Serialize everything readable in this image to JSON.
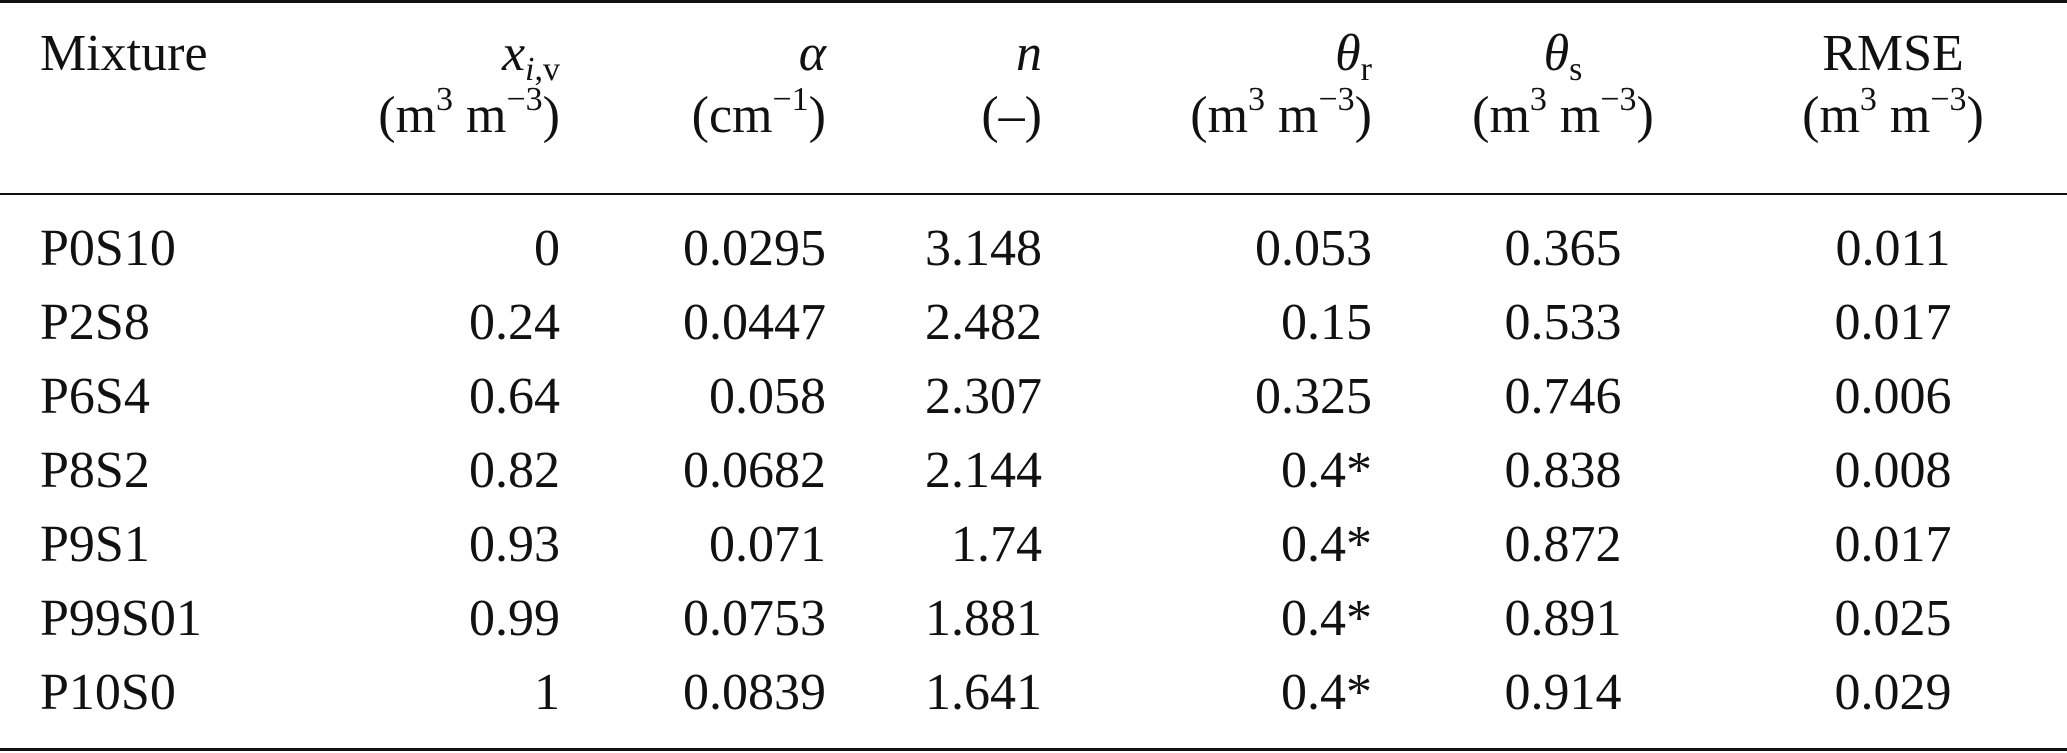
{
  "table": {
    "headers": [
      {
        "symbol": "Mixture",
        "unit": ""
      },
      {
        "symbol_base": "x",
        "symbol_sub": "i,",
        "symbol_sub2": "v",
        "unit_pre": "(m",
        "unit_sup1": "3",
        "unit_mid": " m",
        "unit_sup2": "−3",
        "unit_post": ")"
      },
      {
        "symbol": "α",
        "unit_pre": "(cm",
        "unit_sup1": "−1",
        "unit_post": ")"
      },
      {
        "symbol": "n",
        "unit": "(–)"
      },
      {
        "symbol_base": "θ",
        "symbol_sub": "r",
        "unit_pre": "(m",
        "unit_sup1": "3",
        "unit_mid": " m",
        "unit_sup2": "−3",
        "unit_post": ")"
      },
      {
        "symbol_base": "θ",
        "symbol_sub": "s",
        "unit_pre": "(m",
        "unit_sup1": "3",
        "unit_mid": " m",
        "unit_sup2": "−3",
        "unit_post": ")"
      },
      {
        "symbol": "RMSE",
        "unit_pre": "(m",
        "unit_sup1": "3",
        "unit_mid": " m",
        "unit_sup2": "−3",
        "unit_post": ")"
      }
    ],
    "rows": [
      {
        "mixture": "P0S10",
        "x": "0",
        "alpha": "0.0295",
        "n": "3.148",
        "theta_r": "0.053",
        "theta_s": "0.365",
        "rmse": "0.011"
      },
      {
        "mixture": "P2S8",
        "x": "0.24",
        "alpha": "0.0447",
        "n": "2.482",
        "theta_r": "0.15",
        "theta_s": "0.533",
        "rmse": "0.017"
      },
      {
        "mixture": "P6S4",
        "x": "0.64",
        "alpha": "0.058",
        "n": "2.307",
        "theta_r": "0.325",
        "theta_s": "0.746",
        "rmse": "0.006"
      },
      {
        "mixture": "P8S2",
        "x": "0.82",
        "alpha": "0.0682",
        "n": "2.144",
        "theta_r": "0.4*",
        "theta_s": "0.838",
        "rmse": "0.008"
      },
      {
        "mixture": "P9S1",
        "x": "0.93",
        "alpha": "0.071",
        "n": "1.74",
        "theta_r": "0.4*",
        "theta_s": "0.872",
        "rmse": "0.017"
      },
      {
        "mixture": "P99S01",
        "x": "0.99",
        "alpha": "0.0753",
        "n": "1.881",
        "theta_r": "0.4*",
        "theta_s": "0.891",
        "rmse": "0.025"
      },
      {
        "mixture": "P10S0",
        "x": "1",
        "alpha": "0.0839",
        "n": "1.641",
        "theta_r": "0.4*",
        "theta_s": "0.914",
        "rmse": "0.029"
      }
    ]
  }
}
